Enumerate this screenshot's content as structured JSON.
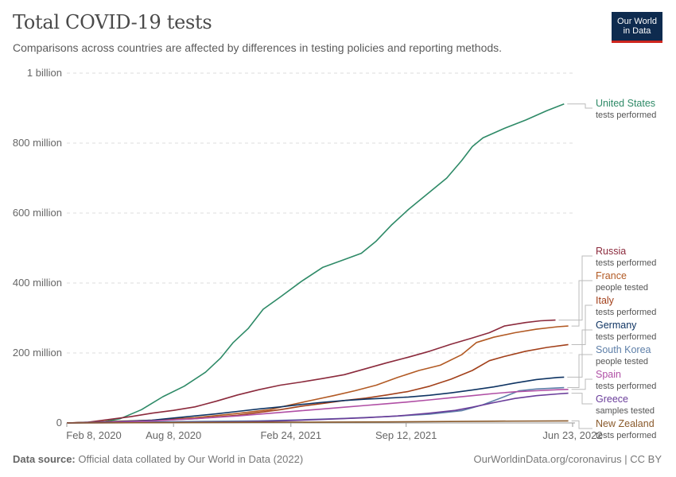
{
  "header": {
    "title": "Total COVID-19 tests",
    "subtitle": "Comparisons across countries are affected by differences in testing policies and reporting methods.",
    "logo_line1": "Our World",
    "logo_line2": "in Data"
  },
  "footer": {
    "source_label": "Data source:",
    "source_text": "Official data collated by Our World in Data (2022)",
    "right_text": "OurWorldinData.org/coronavirus | CC BY"
  },
  "chart_data": {
    "type": "line",
    "title": "Total COVID-19 tests",
    "x_ticks": [
      {
        "label": "Feb 8, 2020",
        "t": 0
      },
      {
        "label": "Aug 8, 2020",
        "t": 0.5
      },
      {
        "label": "Feb 24, 2021",
        "t": 1.05
      },
      {
        "label": "Sep 12, 2021",
        "t": 1.59
      },
      {
        "label": "Jun 23, 2022",
        "t": 2.37
      }
    ],
    "y_ticks": [
      {
        "label": "0",
        "value": 0
      },
      {
        "label": "200 million",
        "value": 200
      },
      {
        "label": "400 million",
        "value": 400
      },
      {
        "label": "600 million",
        "value": 600
      },
      {
        "label": "800 million",
        "value": 800
      },
      {
        "label": "1 billion",
        "value": 1000
      }
    ],
    "ylim": [
      0,
      1000
    ],
    "xlim": [
      0,
      2.37
    ],
    "grid": true,
    "series": [
      {
        "name": "United States",
        "metric": "tests performed",
        "color": "#2e8a67",
        "points": [
          [
            0,
            0
          ],
          [
            0.15,
            1
          ],
          [
            0.25,
            12
          ],
          [
            0.35,
            38
          ],
          [
            0.45,
            75
          ],
          [
            0.55,
            105
          ],
          [
            0.65,
            145
          ],
          [
            0.72,
            185
          ],
          [
            0.78,
            230
          ],
          [
            0.85,
            270
          ],
          [
            0.92,
            325
          ],
          [
            1.0,
            360
          ],
          [
            1.1,
            405
          ],
          [
            1.2,
            445
          ],
          [
            1.3,
            467
          ],
          [
            1.38,
            485
          ],
          [
            1.45,
            520
          ],
          [
            1.52,
            565
          ],
          [
            1.6,
            610
          ],
          [
            1.7,
            660
          ],
          [
            1.78,
            700
          ],
          [
            1.85,
            750
          ],
          [
            1.9,
            790
          ],
          [
            1.95,
            815
          ],
          [
            2.05,
            842
          ],
          [
            2.15,
            866
          ],
          [
            2.25,
            893
          ],
          [
            2.33,
            912
          ]
        ]
      },
      {
        "name": "Russia",
        "metric": "tests performed",
        "color": "#8b2a3c",
        "points": [
          [
            0,
            0
          ],
          [
            0.1,
            2
          ],
          [
            0.2,
            10
          ],
          [
            0.3,
            18
          ],
          [
            0.4,
            28
          ],
          [
            0.5,
            36
          ],
          [
            0.6,
            46
          ],
          [
            0.7,
            62
          ],
          [
            0.8,
            80
          ],
          [
            0.9,
            95
          ],
          [
            1.0,
            108
          ],
          [
            1.1,
            117
          ],
          [
            1.2,
            127
          ],
          [
            1.3,
            138
          ],
          [
            1.4,
            155
          ],
          [
            1.5,
            172
          ],
          [
            1.6,
            188
          ],
          [
            1.7,
            205
          ],
          [
            1.8,
            225
          ],
          [
            1.9,
            243
          ],
          [
            1.98,
            258
          ],
          [
            2.05,
            277
          ],
          [
            2.15,
            287
          ],
          [
            2.22,
            292
          ],
          [
            2.29,
            294
          ]
        ]
      },
      {
        "name": "France",
        "metric": "people tested",
        "color": "#b25a24",
        "points": [
          [
            0,
            0
          ],
          [
            0.2,
            4
          ],
          [
            0.4,
            8
          ],
          [
            0.6,
            15
          ],
          [
            0.8,
            27
          ],
          [
            0.95,
            38
          ],
          [
            1.05,
            52
          ],
          [
            1.15,
            65
          ],
          [
            1.25,
            78
          ],
          [
            1.35,
            92
          ],
          [
            1.45,
            108
          ],
          [
            1.55,
            130
          ],
          [
            1.65,
            150
          ],
          [
            1.75,
            165
          ],
          [
            1.85,
            195
          ],
          [
            1.92,
            230
          ],
          [
            2.0,
            245
          ],
          [
            2.1,
            258
          ],
          [
            2.2,
            268
          ],
          [
            2.3,
            275
          ],
          [
            2.35,
            277
          ]
        ]
      },
      {
        "name": "Italy",
        "metric": "tests performed",
        "color": "#a2401a",
        "points": [
          [
            0,
            0
          ],
          [
            0.2,
            3
          ],
          [
            0.4,
            7
          ],
          [
            0.6,
            12
          ],
          [
            0.8,
            22
          ],
          [
            1.0,
            38
          ],
          [
            1.1,
            48
          ],
          [
            1.2,
            56
          ],
          [
            1.3,
            64
          ],
          [
            1.4,
            71
          ],
          [
            1.5,
            80
          ],
          [
            1.6,
            90
          ],
          [
            1.7,
            105
          ],
          [
            1.8,
            125
          ],
          [
            1.9,
            150
          ],
          [
            1.98,
            178
          ],
          [
            2.05,
            190
          ],
          [
            2.15,
            205
          ],
          [
            2.25,
            216
          ],
          [
            2.35,
            224
          ]
        ]
      },
      {
        "name": "Germany",
        "metric": "tests performed",
        "color": "#0f3463",
        "points": [
          [
            0,
            0
          ],
          [
            0.2,
            3
          ],
          [
            0.4,
            8
          ],
          [
            0.5,
            14
          ],
          [
            0.6,
            20
          ],
          [
            0.7,
            26
          ],
          [
            0.8,
            33
          ],
          [
            0.9,
            40
          ],
          [
            1.0,
            46
          ],
          [
            1.1,
            53
          ],
          [
            1.2,
            59
          ],
          [
            1.3,
            64
          ],
          [
            1.4,
            68
          ],
          [
            1.5,
            71
          ],
          [
            1.6,
            74
          ],
          [
            1.7,
            79
          ],
          [
            1.8,
            86
          ],
          [
            1.9,
            94
          ],
          [
            2.0,
            103
          ],
          [
            2.1,
            114
          ],
          [
            2.2,
            124
          ],
          [
            2.3,
            130
          ],
          [
            2.33,
            131
          ]
        ]
      },
      {
        "name": "South Korea",
        "metric": "people tested",
        "color": "#5e7fa8",
        "points": [
          [
            0,
            0
          ],
          [
            0.3,
            2
          ],
          [
            0.6,
            4
          ],
          [
            0.9,
            6
          ],
          [
            1.1,
            9
          ],
          [
            1.3,
            13
          ],
          [
            1.5,
            18
          ],
          [
            1.7,
            25
          ],
          [
            1.85,
            35
          ],
          [
            1.95,
            52
          ],
          [
            2.05,
            75
          ],
          [
            2.12,
            92
          ],
          [
            2.2,
            97
          ],
          [
            2.33,
            101
          ]
        ]
      },
      {
        "name": "Spain",
        "metric": "tests performed",
        "color": "#b04fa5",
        "points": [
          [
            0,
            0
          ],
          [
            0.2,
            2
          ],
          [
            0.4,
            6
          ],
          [
            0.6,
            12
          ],
          [
            0.8,
            20
          ],
          [
            1.0,
            30
          ],
          [
            1.1,
            35
          ],
          [
            1.2,
            40
          ],
          [
            1.3,
            45
          ],
          [
            1.4,
            50
          ],
          [
            1.5,
            55
          ],
          [
            1.6,
            60
          ],
          [
            1.7,
            66
          ],
          [
            1.8,
            72
          ],
          [
            1.9,
            78
          ],
          [
            2.0,
            84
          ],
          [
            2.1,
            89
          ],
          [
            2.2,
            92
          ],
          [
            2.3,
            95
          ],
          [
            2.35,
            96
          ]
        ]
      },
      {
        "name": "Greece",
        "metric": "samples tested",
        "color": "#6a3d9a",
        "points": [
          [
            0,
            0
          ],
          [
            0.4,
            1
          ],
          [
            0.8,
            3
          ],
          [
            1.0,
            6
          ],
          [
            1.2,
            10
          ],
          [
            1.4,
            15
          ],
          [
            1.55,
            20
          ],
          [
            1.7,
            28
          ],
          [
            1.82,
            36
          ],
          [
            1.9,
            45
          ],
          [
            2.0,
            58
          ],
          [
            2.1,
            70
          ],
          [
            2.2,
            78
          ],
          [
            2.3,
            83
          ],
          [
            2.35,
            85
          ]
        ]
      },
      {
        "name": "New Zealand",
        "metric": "tests performed",
        "color": "#8a5a2b",
        "points": [
          [
            0,
            0
          ],
          [
            0.5,
            1
          ],
          [
            1.0,
            2
          ],
          [
            1.5,
            3
          ],
          [
            2.0,
            5
          ],
          [
            2.35,
            6
          ]
        ]
      }
    ]
  }
}
